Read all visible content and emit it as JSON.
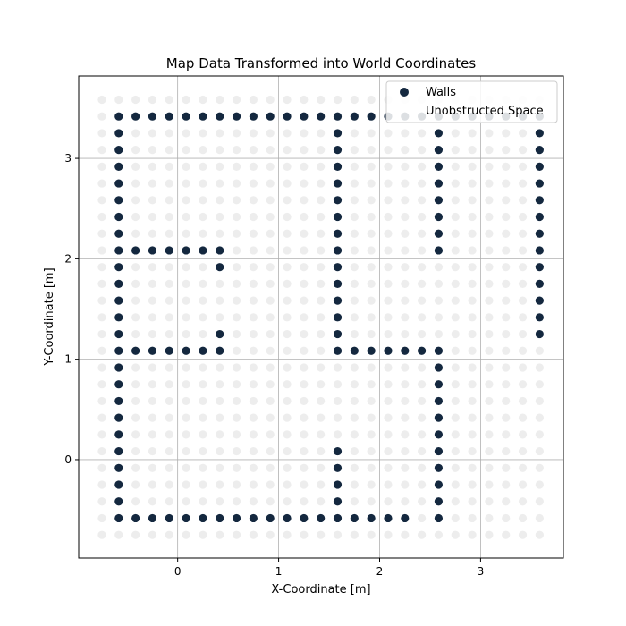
{
  "chart_data": {
    "type": "scatter",
    "title": "Map Data Transformed into World Coordinates",
    "xlabel": "X-Coordinate [m]",
    "ylabel": "Y-Coordinate [m]",
    "xlim": [
      -0.98,
      3.82
    ],
    "ylim": [
      -0.98,
      3.82
    ],
    "xticks": [
      0,
      1,
      2,
      3
    ],
    "yticks": [
      0,
      1,
      2,
      3
    ],
    "grid": true,
    "legend": {
      "location": "top-right",
      "entries": [
        "Walls",
        "Unobstructed Space"
      ]
    },
    "grid_spacing": 0.1667,
    "grid_origin": [
      -0.75,
      -0.75
    ],
    "grid_size": [
      27,
      27
    ],
    "series": [
      {
        "name": "Walls",
        "color": "#14283f",
        "segments_cells": [
          {
            "axis": "row",
            "fixed": 1,
            "from": 1,
            "to": 26
          },
          {
            "axis": "row",
            "fixed": 25,
            "from": 1,
            "to": 18
          },
          {
            "axis": "row",
            "fixed": 9,
            "from": 2,
            "to": 7
          },
          {
            "axis": "row",
            "fixed": 15,
            "from": 2,
            "to": 7
          },
          {
            "axis": "row",
            "fixed": 15,
            "from": 14,
            "to": 20
          },
          {
            "axis": "col",
            "fixed": 1,
            "from": 1,
            "to": 25
          },
          {
            "axis": "col",
            "fixed": 7,
            "from": 9,
            "to": 10
          },
          {
            "axis": "col",
            "fixed": 7,
            "from": 14,
            "to": 15
          },
          {
            "axis": "col",
            "fixed": 14,
            "from": 2,
            "to": 15
          },
          {
            "axis": "col",
            "fixed": 14,
            "from": 21,
            "to": 25
          },
          {
            "axis": "col",
            "fixed": 20,
            "from": 2,
            "to": 9
          },
          {
            "axis": "col",
            "fixed": 20,
            "from": 16,
            "to": 25
          },
          {
            "axis": "col",
            "fixed": 26,
            "from": 1,
            "to": 14
          }
        ]
      },
      {
        "name": "Unobstructed Space",
        "color": "#e6e6e6"
      }
    ]
  }
}
